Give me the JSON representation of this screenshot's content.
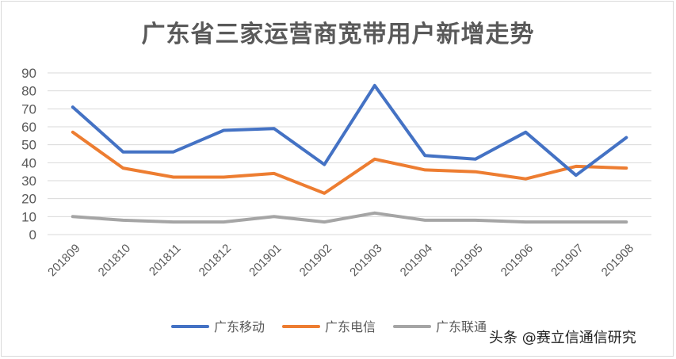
{
  "chart_data": {
    "type": "line",
    "title": "广东省三家运营商宽带用户新增走势",
    "categories": [
      "201809",
      "201810",
      "201811",
      "201812",
      "201901",
      "201902",
      "201903",
      "201904",
      "201905",
      "201906",
      "201907",
      "201908"
    ],
    "ylim": [
      0,
      90
    ],
    "yticks": [
      0,
      10,
      20,
      30,
      40,
      50,
      60,
      70,
      80,
      90
    ],
    "grid": true,
    "legend_position": "bottom",
    "series": [
      {
        "name": "广东移动",
        "color": "#4472c4",
        "values": [
          71,
          46,
          46,
          58,
          59,
          39,
          83,
          44,
          42,
          57,
          33,
          54
        ]
      },
      {
        "name": "广东电信",
        "color": "#ed7d31",
        "values": [
          57,
          37,
          32,
          32,
          34,
          23,
          42,
          36,
          35,
          31,
          38,
          37
        ]
      },
      {
        "name": "广东联通",
        "color": "#a5a5a5",
        "values": [
          10,
          8,
          7,
          7,
          10,
          7,
          12,
          8,
          8,
          7,
          7,
          7
        ]
      }
    ]
  },
  "watermark": "头条 @赛立信通信研究"
}
